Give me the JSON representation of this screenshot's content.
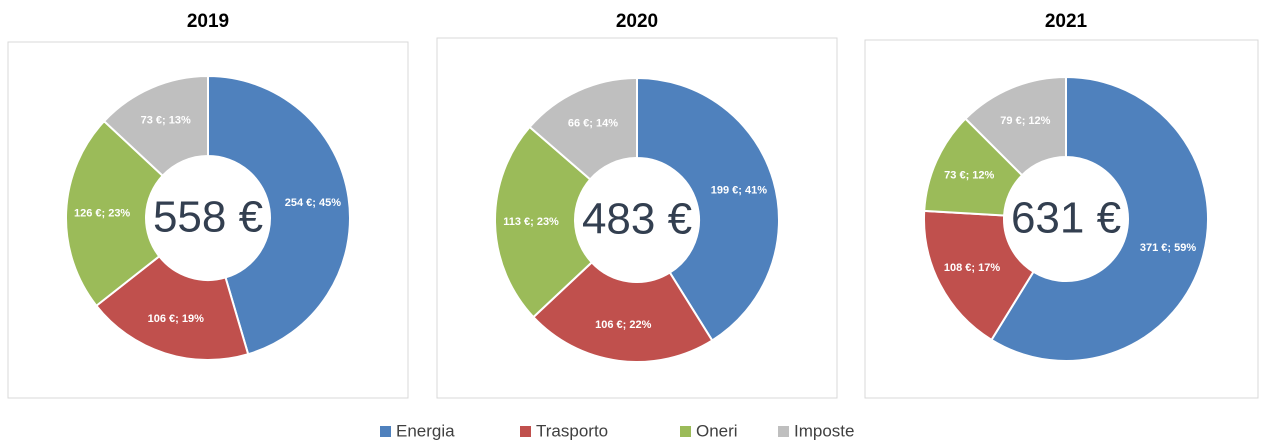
{
  "legend": [
    {
      "name": "Energia",
      "color": "#4f81bd"
    },
    {
      "name": "Trasporto",
      "color": "#c0504d"
    },
    {
      "name": "Oneri",
      "color": "#9bbb59"
    },
    {
      "name": "Imposte",
      "color": "#bfbfbf"
    }
  ],
  "chart_data": [
    {
      "type": "donut",
      "title": "2019",
      "center_label": "558 €",
      "values": [
        254,
        106,
        126,
        73
      ],
      "value_labels": [
        "254 €; 45%",
        "106 €; 19%",
        "126 €; 23%",
        "73 €; 13%"
      ]
    },
    {
      "type": "donut",
      "title": "2020",
      "center_label": "483 €",
      "values": [
        199,
        106,
        113,
        66
      ],
      "value_labels": [
        "199 €; 41%",
        "106 €; 22%",
        "113 €; 23%",
        "66 €; 14%"
      ]
    },
    {
      "type": "donut",
      "title": "2021",
      "center_label": "631 €",
      "values": [
        371,
        108,
        73,
        79
      ],
      "value_labels": [
        "371 €; 59%",
        "108 €; 17%",
        "73 €; 12%",
        "79 €; 12%"
      ]
    }
  ]
}
